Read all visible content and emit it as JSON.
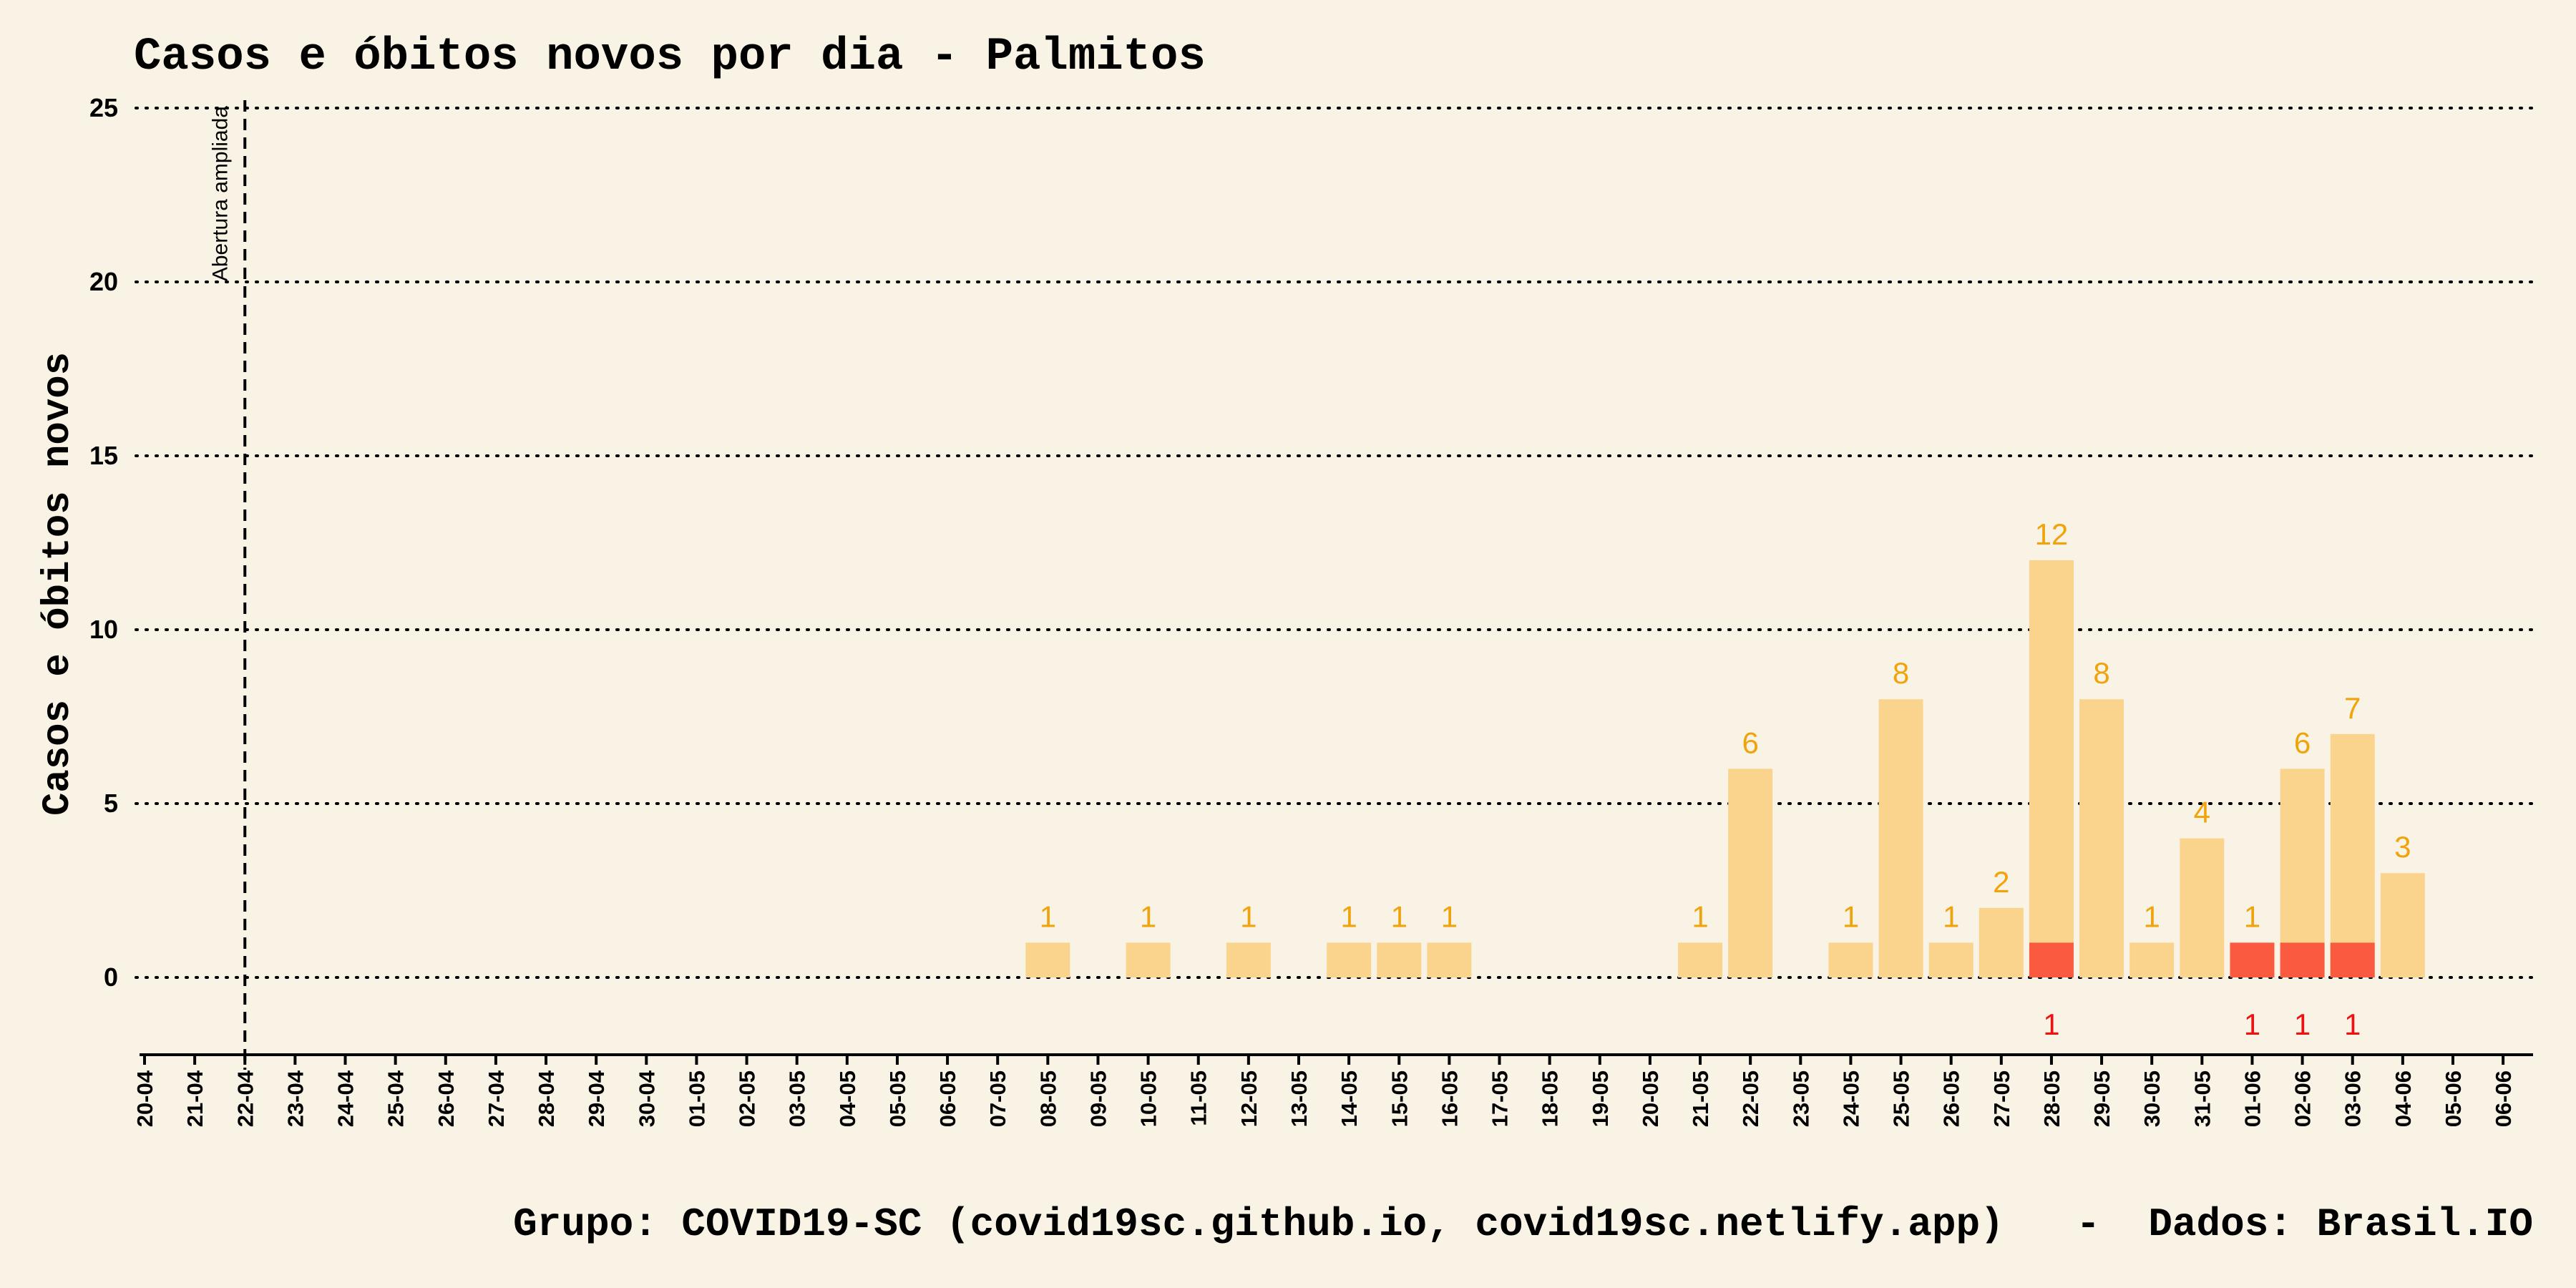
{
  "chart_data": {
    "type": "bar",
    "title": "Casos e óbitos novos por dia -  Palmitos",
    "ylabel": "Casos e óbitos novos",
    "xlabel": "",
    "ylim": [
      -2.2,
      25
    ],
    "yticks": [
      0,
      5,
      10,
      15,
      20,
      25
    ],
    "grid": "horizontal-dotted",
    "categories": [
      "20-04",
      "21-04",
      "22-04",
      "23-04",
      "24-04",
      "25-04",
      "26-04",
      "27-04",
      "28-04",
      "29-04",
      "30-04",
      "01-05",
      "02-05",
      "03-05",
      "04-05",
      "05-05",
      "06-05",
      "07-05",
      "08-05",
      "09-05",
      "10-05",
      "11-05",
      "12-05",
      "13-05",
      "14-05",
      "15-05",
      "16-05",
      "17-05",
      "18-05",
      "19-05",
      "20-05",
      "21-05",
      "22-05",
      "23-05",
      "24-05",
      "25-05",
      "26-05",
      "27-05",
      "28-05",
      "29-05",
      "30-05",
      "31-05",
      "01-06",
      "02-06",
      "03-06",
      "04-06",
      "05-06",
      "06-06"
    ],
    "series": [
      {
        "key": "casos",
        "color": "#fad48c",
        "label_color": "#f0a30a",
        "values": [
          0,
          0,
          0,
          0,
          0,
          0,
          0,
          0,
          0,
          0,
          0,
          0,
          0,
          0,
          0,
          0,
          0,
          0,
          1,
          0,
          1,
          0,
          1,
          0,
          1,
          1,
          1,
          0,
          0,
          0,
          0,
          1,
          6,
          0,
          1,
          8,
          1,
          2,
          12,
          8,
          1,
          4,
          1,
          6,
          7,
          3,
          0,
          0
        ]
      },
      {
        "key": "obitos",
        "color": "#f95a40",
        "label_color": "#ee1111",
        "values": [
          0,
          0,
          0,
          0,
          0,
          0,
          0,
          0,
          0,
          0,
          0,
          0,
          0,
          0,
          0,
          0,
          0,
          0,
          0,
          0,
          0,
          0,
          0,
          0,
          0,
          0,
          0,
          0,
          0,
          0,
          0,
          0,
          0,
          0,
          0,
          0,
          0,
          0,
          1,
          0,
          0,
          0,
          1,
          1,
          1,
          0,
          0,
          0
        ]
      }
    ],
    "annotations": [
      {
        "category": "22-04",
        "text": "Abertura ampliada",
        "style": "dashed-vertical-line"
      }
    ],
    "footer": "Grupo: COVID19-SC (covid19sc.github.io, covid19sc.netlify.app)   -  Dados: Brasil.IO"
  }
}
